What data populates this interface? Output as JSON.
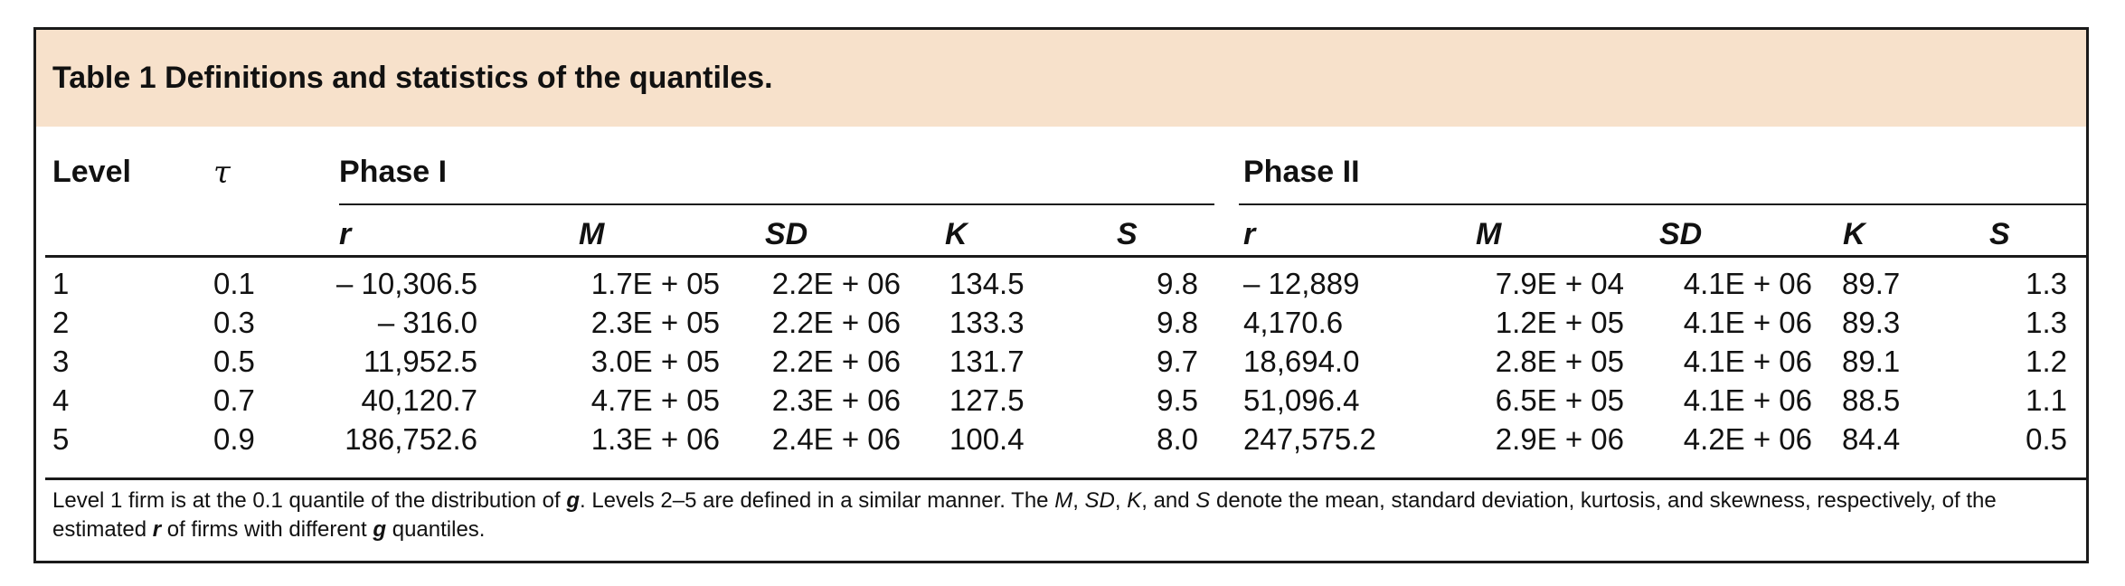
{
  "table": {
    "caption": "Table 1 Definitions and statistics of the quantiles.",
    "headers": {
      "level": "Level",
      "tau": "τ",
      "phase1": "Phase I",
      "phase2": "Phase II"
    },
    "subheaders": [
      "r",
      "M",
      "SD",
      "K",
      "S"
    ],
    "rows": [
      {
        "level": "1",
        "tau": "0.1",
        "p1": [
          "– 10,306.5",
          "1.7E + 05",
          "2.2E + 06",
          "134.5",
          "9.8"
        ],
        "p2": [
          "– 12,889",
          "7.9E + 04",
          "4.1E + 06",
          "89.7",
          "1.3"
        ]
      },
      {
        "level": "2",
        "tau": "0.3",
        "p1": [
          "– 316.0",
          "2.3E + 05",
          "2.2E + 06",
          "133.3",
          "9.8"
        ],
        "p2": [
          "4,170.6",
          "1.2E + 05",
          "4.1E + 06",
          "89.3",
          "1.3"
        ]
      },
      {
        "level": "3",
        "tau": "0.5",
        "p1": [
          "11,952.5",
          "3.0E + 05",
          "2.2E + 06",
          "131.7",
          "9.7"
        ],
        "p2": [
          "18,694.0",
          "2.8E + 05",
          "4.1E + 06",
          "89.1",
          "1.2"
        ]
      },
      {
        "level": "4",
        "tau": "0.7",
        "p1": [
          "40,120.7",
          "4.7E + 05",
          "2.3E + 06",
          "127.5",
          "9.5"
        ],
        "p2": [
          "51,096.4",
          "6.5E + 05",
          "4.1E + 06",
          "88.5",
          "1.1"
        ]
      },
      {
        "level": "5",
        "tau": "0.9",
        "p1": [
          "186,752.6",
          "1.3E + 06",
          "2.4E + 06",
          "100.4",
          "8.0"
        ],
        "p2": [
          "247,575.2",
          "2.9E + 06",
          "4.2E + 06",
          "84.4",
          "0.5"
        ]
      }
    ],
    "footnote": {
      "t1": "Level 1 firm is at the 0.1 quantile of the distribution of ",
      "g1": "g",
      "t2": ". Levels 2–5 are defined in a similar manner. The ",
      "m": "M",
      "c1": ", ",
      "sd": "SD",
      "c2": ", ",
      "k": "K",
      "t3": ", and ",
      "s": "S",
      "t4": " denote the mean, standard deviation, kurtosis, and skewness, respectively, of the estimated ",
      "r": "r",
      "t5": " of firms with different ",
      "g2": "g",
      "t6": " quantiles."
    }
  }
}
